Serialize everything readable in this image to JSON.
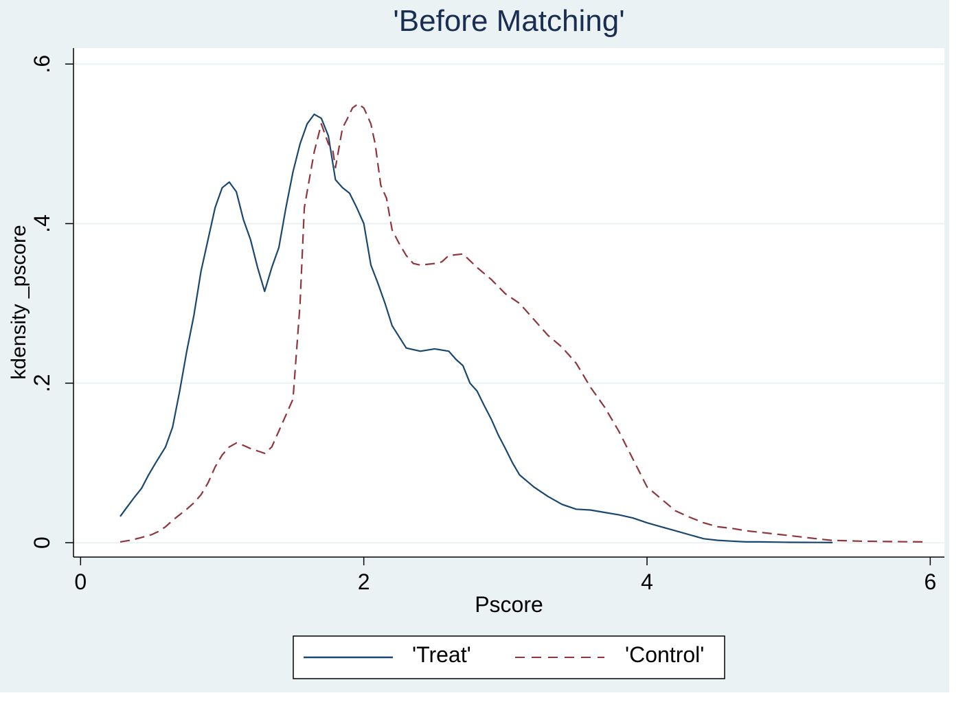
{
  "colors": {
    "background": "#eaf2f3",
    "plot_background": "#ffffff",
    "grid": "#eaf2f3",
    "axis": "#000000",
    "title": "#1a2d52",
    "text": "#000000",
    "treat_line": "#1a476f",
    "control_line": "#90353b"
  },
  "chart_data": {
    "type": "line",
    "title": "'Before Matching'",
    "xlabel": "Pscore",
    "ylabel": "kdensity _pscore",
    "xlim": [
      -0.05,
      6.1
    ],
    "ylim": [
      -0.018,
      0.62
    ],
    "xticks": [
      0,
      2,
      4,
      6
    ],
    "xtick_labels": [
      "0",
      "2",
      "4",
      "6"
    ],
    "yticks": [
      0,
      0.2,
      0.4,
      0.6
    ],
    "ytick_labels": [
      "0",
      ".2",
      ".4",
      ".6"
    ],
    "grid": true,
    "legend_position": "bottom",
    "series": [
      {
        "name": "'Treat'",
        "style": "solid",
        "x": [
          0.28,
          0.33,
          0.38,
          0.43,
          0.48,
          0.53,
          0.6,
          0.65,
          0.7,
          0.75,
          0.8,
          0.85,
          0.9,
          0.95,
          1.0,
          1.05,
          1.1,
          1.15,
          1.2,
          1.25,
          1.3,
          1.35,
          1.4,
          1.45,
          1.5,
          1.55,
          1.6,
          1.65,
          1.7,
          1.75,
          1.8,
          1.85,
          1.9,
          1.95,
          2.0,
          2.05,
          2.1,
          2.15,
          2.2,
          2.3,
          2.4,
          2.5,
          2.6,
          2.65,
          2.7,
          2.75,
          2.8,
          2.85,
          2.9,
          2.95,
          3.0,
          3.05,
          3.1,
          3.2,
          3.3,
          3.4,
          3.5,
          3.6,
          3.7,
          3.8,
          3.9,
          4.0,
          4.1,
          4.2,
          4.3,
          4.4,
          4.5,
          4.6,
          4.7,
          4.8,
          4.9,
          5.0,
          5.1,
          5.2,
          5.31
        ],
        "y": [
          0.033,
          0.045,
          0.057,
          0.068,
          0.085,
          0.1,
          0.12,
          0.145,
          0.19,
          0.24,
          0.285,
          0.34,
          0.38,
          0.42,
          0.445,
          0.452,
          0.44,
          0.405,
          0.38,
          0.345,
          0.315,
          0.345,
          0.37,
          0.42,
          0.465,
          0.5,
          0.525,
          0.537,
          0.532,
          0.51,
          0.455,
          0.445,
          0.438,
          0.42,
          0.4,
          0.348,
          0.325,
          0.3,
          0.272,
          0.244,
          0.24,
          0.243,
          0.24,
          0.23,
          0.222,
          0.2,
          0.19,
          0.172,
          0.155,
          0.135,
          0.118,
          0.1,
          0.085,
          0.07,
          0.058,
          0.048,
          0.042,
          0.041,
          0.038,
          0.035,
          0.031,
          0.025,
          0.02,
          0.015,
          0.01,
          0.005,
          0.003,
          0.002,
          0.001,
          0.001,
          0.0008,
          0.0005,
          0.0004,
          0.0003,
          0.0002
        ]
      },
      {
        "name": "'Control'",
        "style": "dashed",
        "x": [
          0.28,
          0.35,
          0.42,
          0.5,
          0.55,
          0.6,
          0.65,
          0.7,
          0.75,
          0.8,
          0.85,
          0.9,
          0.95,
          1.0,
          1.05,
          1.1,
          1.15,
          1.2,
          1.25,
          1.3,
          1.35,
          1.4,
          1.45,
          1.5,
          1.55,
          1.58,
          1.62,
          1.65,
          1.7,
          1.75,
          1.78,
          1.8,
          1.85,
          1.88,
          1.92,
          1.96,
          2.0,
          2.05,
          2.08,
          2.12,
          2.16,
          2.2,
          2.25,
          2.3,
          2.35,
          2.4,
          2.5,
          2.55,
          2.6,
          2.7,
          2.8,
          2.9,
          3.0,
          3.1,
          3.2,
          3.3,
          3.4,
          3.5,
          3.6,
          3.7,
          3.8,
          3.9,
          4.0,
          4.1,
          4.2,
          4.3,
          4.4,
          4.5,
          4.6,
          4.7,
          4.8,
          4.9,
          5.0,
          5.1,
          5.2,
          5.3,
          5.5,
          5.7,
          5.95
        ],
        "y": [
          0.001,
          0.003,
          0.006,
          0.01,
          0.014,
          0.02,
          0.028,
          0.035,
          0.042,
          0.05,
          0.06,
          0.075,
          0.095,
          0.11,
          0.12,
          0.125,
          0.122,
          0.118,
          0.115,
          0.112,
          0.12,
          0.14,
          0.16,
          0.18,
          0.3,
          0.42,
          0.46,
          0.49,
          0.525,
          0.5,
          0.493,
          0.47,
          0.52,
          0.53,
          0.545,
          0.55,
          0.545,
          0.525,
          0.5,
          0.448,
          0.432,
          0.392,
          0.375,
          0.36,
          0.35,
          0.348,
          0.35,
          0.352,
          0.36,
          0.362,
          0.345,
          0.33,
          0.312,
          0.3,
          0.28,
          0.26,
          0.245,
          0.225,
          0.195,
          0.17,
          0.14,
          0.105,
          0.07,
          0.055,
          0.04,
          0.032,
          0.025,
          0.02,
          0.018,
          0.015,
          0.013,
          0.011,
          0.009,
          0.007,
          0.005,
          0.003,
          0.002,
          0.0015,
          0.001
        ]
      }
    ]
  }
}
